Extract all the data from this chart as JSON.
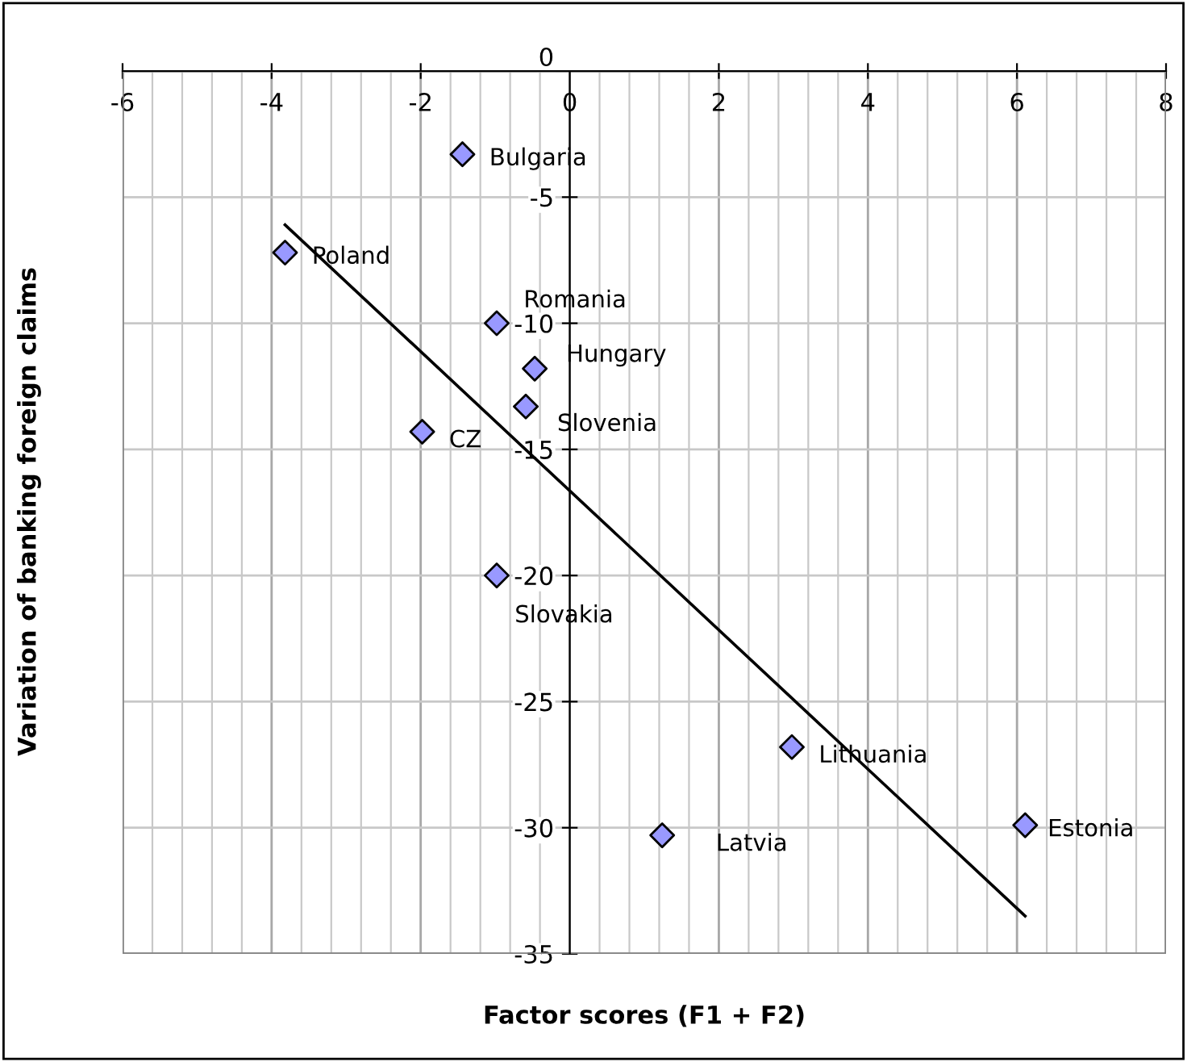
{
  "chart_data": {
    "type": "scatter",
    "xlabel": "Factor scores (F1 + F2)",
    "ylabel": "Variation of banking foreign claims",
    "xlim": [
      -6,
      8
    ],
    "ylim": [
      -35,
      0
    ],
    "xticks": [
      -6,
      -4,
      -2,
      0,
      2,
      4,
      6,
      8
    ],
    "yticks": [
      0,
      -5,
      -10,
      -15,
      -20,
      -25,
      -30,
      -35
    ],
    "grid": true,
    "marker": "diamond",
    "series": [
      {
        "color": "#9999ff",
        "x": [
          -1.44,
          -3.82,
          -0.98,
          -0.47,
          -0.59,
          -1.98,
          -0.98,
          1.24,
          2.98,
          6.11
        ],
        "values": [
          -3.3,
          -7.2,
          -10.0,
          -11.8,
          -13.3,
          -14.3,
          -20.0,
          -30.3,
          -26.8,
          -29.9
        ]
      },
      {
        "type": "line",
        "color": "#000000",
        "marker": "none",
        "x": [
          -3.82,
          6.11
        ],
        "values": [
          -6.1,
          -33.5
        ]
      }
    ],
    "annotations": [
      {
        "text": "Bulgaria",
        "x": -1.44,
        "y": -3.3
      },
      {
        "text": "Poland",
        "x": -3.82,
        "y": -7.2
      },
      {
        "text": "Romania",
        "x": -0.98,
        "y": -10.0
      },
      {
        "text": "Hungary",
        "x": -0.47,
        "y": -11.8
      },
      {
        "text": "Slovenia",
        "x": -0.59,
        "y": -13.3
      },
      {
        "text": "CZ",
        "x": -1.98,
        "y": -14.3
      },
      {
        "text": "Slovakia",
        "x": -0.98,
        "y": -20.0
      },
      {
        "text": "Latvia",
        "x": 1.24,
        "y": -30.3
      },
      {
        "text": "Lithuania",
        "x": 2.98,
        "y": -26.8
      },
      {
        "text": "Estonia",
        "x": 6.11,
        "y": -29.9
      }
    ]
  }
}
